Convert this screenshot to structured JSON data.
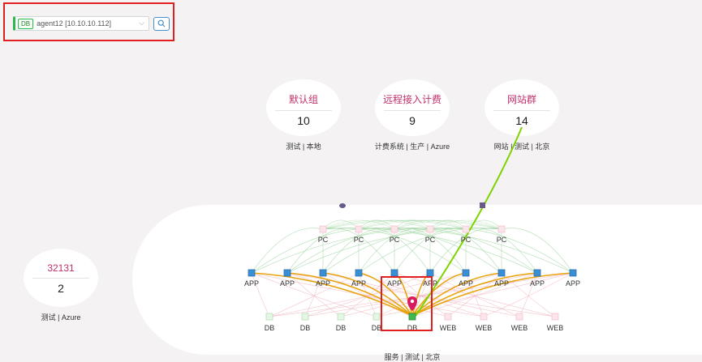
{
  "search": {
    "tag": "DB",
    "selected": "agent12 [10.10.10.112]"
  },
  "groups": [
    {
      "name": "默认组",
      "count": "10",
      "caption": "测试 | 本地"
    },
    {
      "name": "远程接入计费",
      "count": "9",
      "caption": "计费系统 | 生产 | Azure"
    },
    {
      "name": "网站群",
      "count": "14",
      "caption": "网站 | 测试 | 北京"
    },
    {
      "name": "32131",
      "count": "2",
      "caption": "测试 | Azure"
    }
  ],
  "selected_group_caption": "服务 | 测试 | 北京",
  "topology": {
    "pc_label": "PC",
    "app_label": "APP",
    "db_label": "DB",
    "web_label": "WEB",
    "pc_count": 6,
    "app_count": 10,
    "db_count": 5,
    "web_count": 4
  },
  "colors": {
    "accent": "#c1306c",
    "highlight": "#e02020",
    "app_link": "#e6a000",
    "pc_link": "#9ed4a0",
    "db_link": "#f0b5bf",
    "remote_link": "#7ed300",
    "marker": "#d81b60"
  }
}
